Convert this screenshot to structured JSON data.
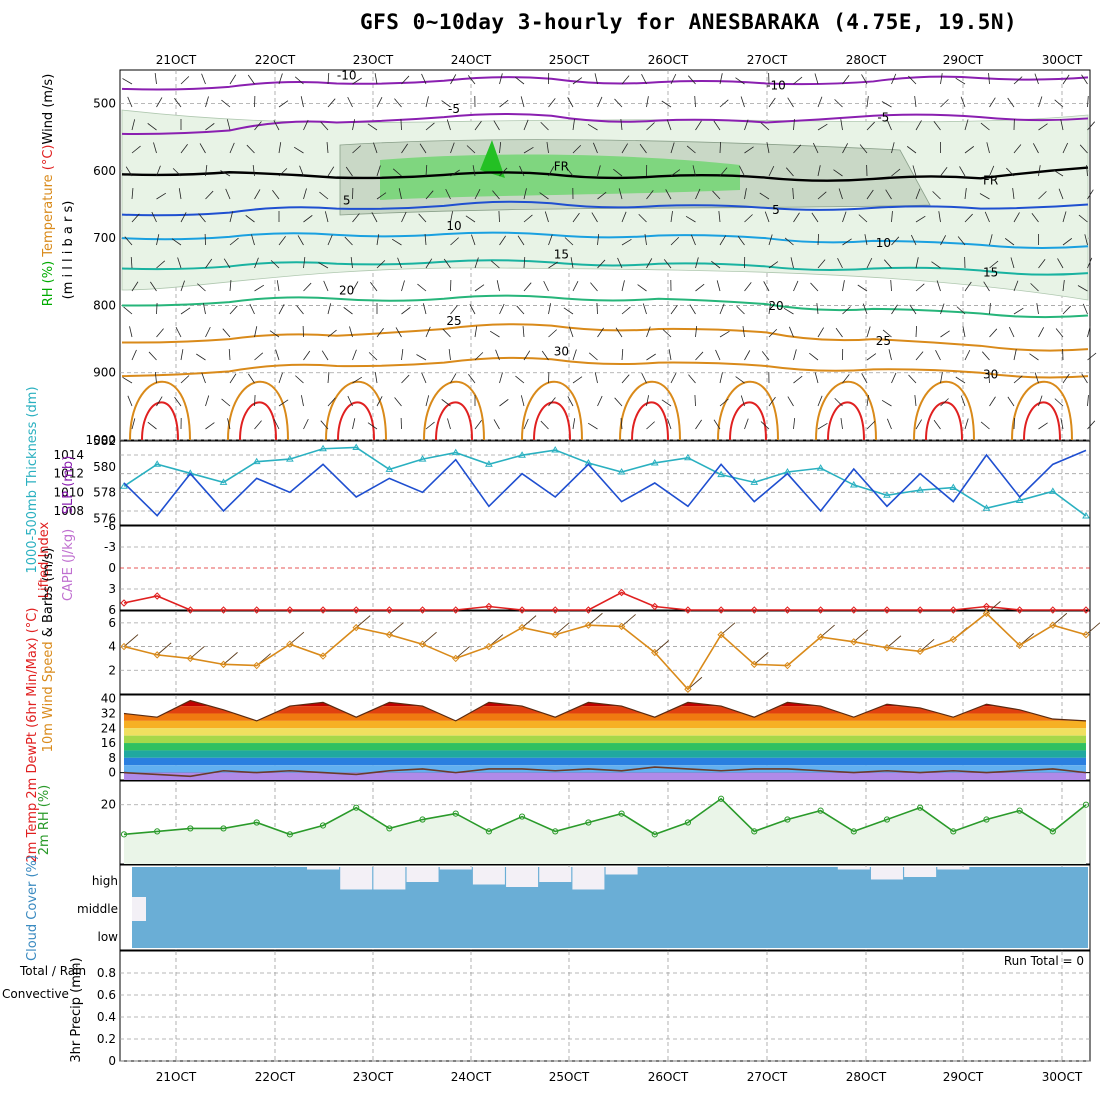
{
  "title": "GFS 0~10day 3-hourly for ANESBARAKA (4.75E, 19.5N)",
  "dates": [
    "21OCT",
    "22OCT",
    "23OCT",
    "24OCT",
    "25OCT",
    "26OCT",
    "27OCT",
    "28OCT",
    "29OCT",
    "30OCT"
  ],
  "colors": {
    "grid": "#a0a0a0",
    "purple": "#8a1fb0",
    "blue": "#1f4fd0",
    "lightblue": "#1aa0e0",
    "teal": "#19b2a0",
    "green": "#26b57a",
    "orange": "#d98a1a",
    "red": "#e02020",
    "rhGreen": "#2a9a2a",
    "cloud": "#6aaed6"
  },
  "chart_data": [
    {
      "type": "contour",
      "id": "upper",
      "ylabel_parts": [
        "RH (%)",
        "Temperature (°C)",
        "Wind (m/s)"
      ],
      "ylabel2": "(m i l l i b a r s)",
      "yticks": [
        500,
        600,
        700,
        800,
        900,
        1000
      ],
      "ylim": [
        450,
        1000
      ],
      "isotherms": [
        {
          "value": -10,
          "label": "-10",
          "color": "#8a1fb0",
          "levels": [
            478,
            475,
            470,
            466,
            463,
            468,
            470,
            467,
            462,
            461
          ]
        },
        {
          "value": -5,
          "label": "-5",
          "color": "#8a1fb0",
          "levels": [
            545,
            540,
            528,
            520,
            518,
            525,
            528,
            518,
            520,
            522
          ]
        },
        {
          "value": 0,
          "label": "FR",
          "color": "#000000",
          "levels": [
            605,
            602,
            610,
            606,
            605,
            608,
            610,
            612,
            611,
            595
          ]
        },
        {
          "value": 5,
          "label": "5",
          "color": "#1f4fd0",
          "levels": [
            665,
            662,
            656,
            652,
            648,
            652,
            655,
            655,
            656,
            650
          ]
        },
        {
          "value": 10,
          "label": "10",
          "color": "#1aa0e0",
          "levels": [
            700,
            698,
            695,
            694,
            695,
            696,
            700,
            704,
            710,
            712
          ]
        },
        {
          "value": 15,
          "label": "15",
          "color": "#19b2a0",
          "levels": [
            745,
            742,
            738,
            735,
            736,
            738,
            742,
            745,
            748,
            752
          ]
        },
        {
          "value": 20,
          "label": "20",
          "color": "#26b57a",
          "levels": [
            800,
            795,
            790,
            790,
            788,
            790,
            798,
            805,
            812,
            815
          ]
        },
        {
          "value": 25,
          "label": "25",
          "color": "#d98a1a",
          "levels": [
            855,
            850,
            845,
            835,
            830,
            835,
            840,
            850,
            860,
            865
          ]
        },
        {
          "value": 30,
          "label": "30",
          "color": "#d98a1a",
          "levels": [
            905,
            898,
            890,
            885,
            880,
            885,
            890,
            895,
            900,
            905
          ]
        }
      ]
    },
    {
      "type": "line",
      "id": "thickness_slp",
      "ylabel": "1000-500mb Thickness (dm)",
      "ylabel_right": "SLP (mb)",
      "yticks_thickness": [
        576,
        578,
        580,
        582
      ],
      "yticks_slp": [
        1008,
        1010,
        1012,
        1014
      ],
      "series": [
        {
          "name": "Thickness",
          "unit": "dm",
          "values": [
            578.5,
            580.2,
            579.5,
            578.8,
            580.4,
            580.6,
            581.4,
            581.5,
            579.8,
            580.6,
            581.1,
            580.2,
            580.9,
            581.3,
            580.3,
            579.6,
            580.3,
            580.7,
            579.4,
            578.8,
            579.6,
            579.9,
            578.6,
            577.8,
            578.2,
            578.4,
            576.8,
            577.4,
            578.1,
            576.2
          ]
        },
        {
          "name": "SLP",
          "unit": "mb",
          "values": [
            1011,
            1007.5,
            1012,
            1008,
            1011.5,
            1010,
            1013,
            1009.5,
            1011.5,
            1010,
            1013.5,
            1008.5,
            1012,
            1009.5,
            1013,
            1009,
            1011,
            1008.5,
            1013,
            1009,
            1012,
            1008,
            1012.5,
            1008.5,
            1012,
            1009,
            1014,
            1009.5,
            1013,
            1014.5
          ]
        }
      ]
    },
    {
      "type": "line",
      "id": "li_cape",
      "ylabel": "Lifted Index",
      "ylabel_right": "CAPE (J/kg)",
      "yticks": [
        -6,
        -3,
        0,
        3,
        6
      ],
      "ylim": [
        -6,
        6
      ],
      "series": [
        {
          "name": "Lifted Index",
          "values": [
            5,
            4,
            6,
            6,
            6,
            6,
            6,
            6,
            6,
            6,
            6,
            5.5,
            6,
            6,
            6,
            3.5,
            5.5,
            6,
            6,
            6,
            6,
            6,
            6,
            6,
            6,
            6,
            5.5,
            6,
            6,
            6
          ]
        }
      ]
    },
    {
      "type": "line",
      "id": "wind10m",
      "ylabel": "10m Wind Speed & Barbs (m/s)",
      "yticks": [
        2,
        4,
        6
      ],
      "ylim": [
        0,
        7
      ],
      "series": [
        {
          "name": "10m Wind Speed",
          "values": [
            4,
            3.3,
            3,
            2.5,
            2.4,
            4.2,
            3.2,
            5.6,
            5,
            4.2,
            3,
            4,
            5.6,
            5,
            5.8,
            5.7,
            3.5,
            0.4,
            5,
            2.5,
            2.4,
            4.8,
            4.4,
            3.9,
            3.6,
            4.6,
            6.8,
            4.1,
            5.8,
            5.0
          ]
        }
      ]
    },
    {
      "type": "area",
      "id": "temp2m",
      "ylabel": "2m Temp 2m DewPt (6hr Min/Max) (°C)",
      "yticks": [
        0,
        8,
        16,
        24,
        32,
        40
      ],
      "ylim": [
        -4,
        42
      ],
      "series": [
        {
          "name": "2m Temp",
          "values": [
            32,
            30,
            39,
            34,
            28,
            36,
            38,
            30,
            38,
            36,
            28,
            38,
            36,
            30,
            38,
            36,
            30,
            38,
            36,
            30,
            38,
            36,
            30,
            37,
            35,
            30,
            37,
            34,
            29,
            28
          ]
        },
        {
          "name": "2m DewPt",
          "values": [
            0,
            -1,
            -2,
            1,
            0,
            1,
            0,
            -1,
            1,
            2,
            0,
            2,
            2,
            1,
            2,
            1,
            3,
            2,
            1,
            2,
            2,
            1,
            0,
            1,
            0,
            1,
            0,
            1,
            2,
            0
          ]
        }
      ]
    },
    {
      "type": "line",
      "id": "rh2m",
      "ylabel": "2m RH (%)",
      "yticks": [
        20
      ],
      "ylim": [
        0,
        28
      ],
      "series": [
        {
          "name": "2m RH",
          "values": [
            10,
            11,
            12,
            12,
            14,
            10,
            13,
            19,
            12,
            15,
            17,
            11,
            16,
            11,
            14,
            17,
            10,
            14,
            22,
            11,
            15,
            18,
            11,
            15,
            19,
            11,
            15,
            18,
            11,
            20
          ]
        }
      ]
    },
    {
      "type": "area",
      "id": "cloud",
      "ylabel": "Cloud Cover (%)",
      "levels": [
        "high",
        "middle",
        "low"
      ],
      "series": [
        {
          "name": "high cloud",
          "values": [
            0,
            0,
            0,
            0,
            0,
            0,
            0.1,
            0.9,
            0.9,
            0.6,
            0.1,
            0.7,
            0.8,
            0.6,
            0.9,
            0.3,
            0,
            0,
            0,
            0,
            0,
            0,
            0.1,
            0.5,
            0.4,
            0.1,
            0,
            0,
            0,
            0
          ]
        }
      ]
    },
    {
      "type": "bar",
      "id": "precip",
      "ylabel": "3hr Precip (mm)",
      "ylabel_left": "Total / Rain Convective",
      "annotation": "Run Total = 0",
      "yticks": [
        0,
        0.2,
        0.4,
        0.6,
        0.8
      ],
      "ylim": [
        0,
        1
      ],
      "values": [
        0,
        0,
        0,
        0,
        0,
        0,
        0,
        0,
        0,
        0
      ]
    }
  ]
}
